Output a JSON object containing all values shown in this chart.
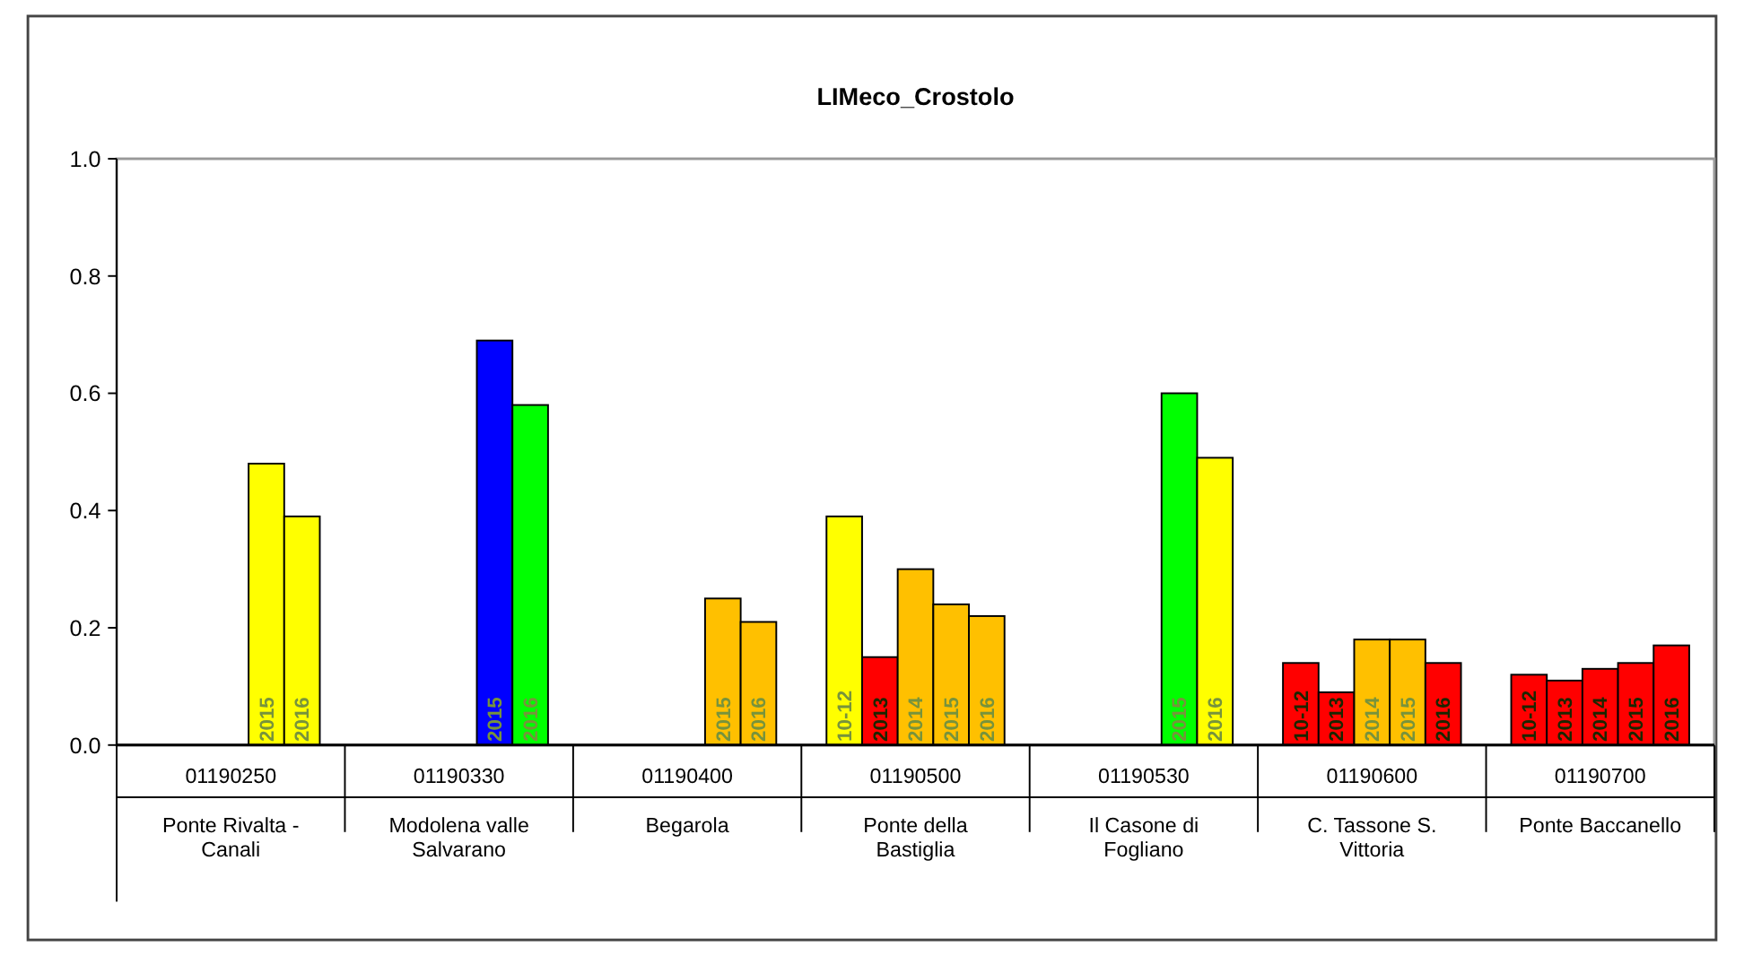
{
  "chart_data": {
    "type": "bar",
    "title": "LIMeco_Crostolo",
    "categories": [
      "01190250\nPonte Rivalta - Canali",
      "01190330\nModolena valle Salvarano",
      "01190400\nBegarola",
      "01190500\nPonte della Bastiglia",
      "01190530\nIl Casone di Fogliano",
      "01190600\nC. Tassone S. Vittoria",
      "01190700\nPonte Baccanello"
    ],
    "series": [
      {
        "name": "10-12",
        "values": [
          null,
          null,
          null,
          0.39,
          null,
          0.14,
          0.12
        ],
        "colors": [
          null,
          null,
          null,
          "#ffff00",
          null,
          "#ff0000",
          "#ff0000"
        ]
      },
      {
        "name": "2013",
        "values": [
          null,
          null,
          null,
          0.15,
          null,
          0.09,
          0.11
        ],
        "colors": [
          null,
          null,
          null,
          "#ff0000",
          null,
          "#ff0000",
          "#ff0000"
        ]
      },
      {
        "name": "2014",
        "values": [
          null,
          null,
          null,
          0.3,
          null,
          0.18,
          0.13
        ],
        "colors": [
          null,
          null,
          null,
          "#ffc000",
          null,
          "#ffc000",
          "#ff0000"
        ]
      },
      {
        "name": "2015",
        "values": [
          0.48,
          0.69,
          0.25,
          0.24,
          0.6,
          0.18,
          0.14
        ],
        "colors": [
          "#ffff00",
          "#0000ff",
          "#ffc000",
          "#ffc000",
          "#00ff00",
          "#ffc000",
          "#ff0000"
        ]
      },
      {
        "name": "2016",
        "values": [
          0.39,
          0.58,
          0.21,
          0.22,
          0.49,
          0.14,
          0.17
        ],
        "colors": [
          "#ffff00",
          "#00ff00",
          "#ffc000",
          "#ffc000",
          "#ffff00",
          "#ff0000",
          "#ff0000"
        ]
      }
    ],
    "ylim": [
      0,
      1
    ],
    "yticks": [
      {
        "value": 0,
        "label": "0.0"
      },
      {
        "value": 0.2,
        "label": "0.2"
      },
      {
        "value": 0.4,
        "label": "0.4"
      },
      {
        "value": 0.6,
        "label": "0.6"
      },
      {
        "value": 0.8,
        "label": "0.8"
      },
      {
        "value": 1,
        "label": "1.0"
      }
    ]
  }
}
